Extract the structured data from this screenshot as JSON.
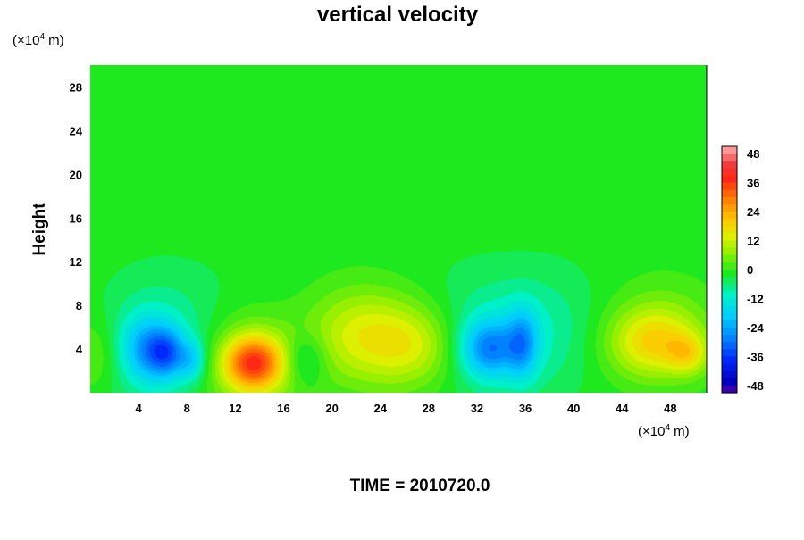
{
  "chart_data": {
    "type": "heatmap",
    "title": "vertical velocity",
    "xlabel": "",
    "ylabel": "Height",
    "x_unit_base": "(×10",
    "x_unit_exp": "4",
    "x_unit_tail": " m)",
    "y_unit_base": "(×10",
    "y_unit_exp": "4",
    "y_unit_tail": " m)",
    "footer": "TIME = 2010720.0",
    "xlim": [
      0,
      51
    ],
    "ylim": [
      0,
      30
    ],
    "x_ticks": [
      4,
      8,
      12,
      16,
      20,
      24,
      28,
      32,
      36,
      40,
      44,
      48
    ],
    "y_ticks": [
      4,
      8,
      12,
      16,
      20,
      24,
      28
    ],
    "colorbar": {
      "range": [
        -51,
        51
      ],
      "ticks": [
        48,
        36,
        24,
        12,
        0,
        -12,
        -24,
        -36,
        -48
      ]
    },
    "features": [
      {
        "x": 13.5,
        "y": 2.7,
        "amp": 30,
        "sx": 1.7,
        "sy": 1.7
      },
      {
        "x": 13.2,
        "y": 2.6,
        "amp": 12,
        "sx": 3.0,
        "sy": 3.5
      },
      {
        "x": 24.0,
        "y": 5.0,
        "amp": 12,
        "sx": 3.6,
        "sy": 3.2
      },
      {
        "x": 27.0,
        "y": 4.2,
        "amp": 9,
        "sx": 2.5,
        "sy": 2.5
      },
      {
        "x": 21.5,
        "y": 5.5,
        "amp": 6,
        "sx": 2.8,
        "sy": 3.0
      },
      {
        "x": 46.5,
        "y": 4.5,
        "amp": 16,
        "sx": 2.6,
        "sy": 2.2
      },
      {
        "x": 49.5,
        "y": 3.5,
        "amp": 12,
        "sx": 1.2,
        "sy": 1.3
      },
      {
        "x": 47.5,
        "y": 6.0,
        "amp": 6,
        "sx": 3.0,
        "sy": 3.0
      },
      {
        "x": 0.5,
        "y": 3.5,
        "amp": 6,
        "sx": 1.5,
        "sy": 2.5
      },
      {
        "x": 6.3,
        "y": 3.6,
        "amp": -20,
        "sx": 1.1,
        "sy": 1.6
      },
      {
        "x": 4.5,
        "y": 4.0,
        "amp": -14,
        "sx": 1.4,
        "sy": 2.0
      },
      {
        "x": 8.4,
        "y": 2.9,
        "amp": -12,
        "sx": 0.8,
        "sy": 1.3
      },
      {
        "x": 5.5,
        "y": 4.0,
        "amp": -8,
        "sx": 3.0,
        "sy": 4.0
      },
      {
        "x": 17.8,
        "y": 3.0,
        "amp": -9,
        "sx": 1.2,
        "sy": 1.6
      },
      {
        "x": 33.0,
        "y": 4.0,
        "amp": -20,
        "sx": 1.6,
        "sy": 1.8
      },
      {
        "x": 35.8,
        "y": 4.5,
        "amp": -16,
        "sx": 0.9,
        "sy": 2.2
      },
      {
        "x": 34.0,
        "y": 4.5,
        "amp": -7,
        "sx": 3.2,
        "sy": 3.8
      },
      {
        "x": 38.5,
        "y": 6.0,
        "amp": -4,
        "sx": 3.0,
        "sy": 4.0
      },
      {
        "x": 10.0,
        "y": 5.5,
        "amp": -3,
        "sx": 6.0,
        "sy": 4.5
      },
      {
        "x": 30.0,
        "y": 6.5,
        "amp": -3,
        "sx": 5.0,
        "sy": 4.0
      }
    ]
  }
}
